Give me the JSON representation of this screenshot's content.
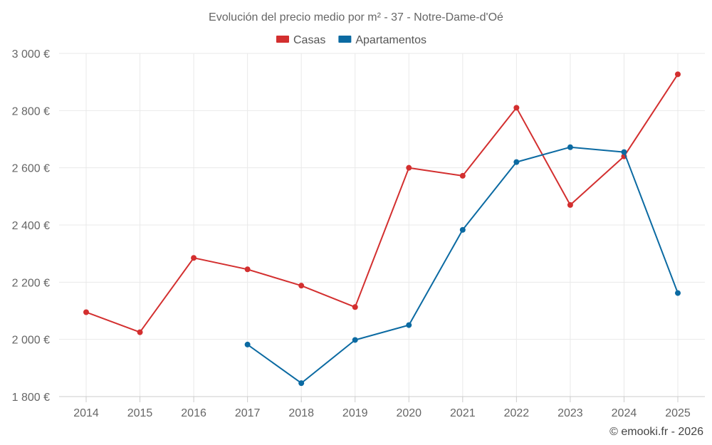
{
  "chart_data": {
    "type": "line",
    "title": "Evolución del precio medio por m² - 37 - Notre-Dame-d'Oé",
    "categories": [
      "2014",
      "2015",
      "2016",
      "2017",
      "2018",
      "2019",
      "2020",
      "2021",
      "2022",
      "2023",
      "2024",
      "2025"
    ],
    "ylim": [
      1800,
      3000
    ],
    "yticks": [
      1800,
      2000,
      2200,
      2400,
      2600,
      2800,
      3000
    ],
    "ytick_labels": [
      "1 800 €",
      "2 000 €",
      "2 200 €",
      "2 400 €",
      "2 600 €",
      "2 800 €",
      "3 000 €"
    ],
    "xlabel": "",
    "ylabel": "",
    "legend_position": "top-center",
    "grid": true,
    "series": [
      {
        "name": "Casas",
        "color": "#d32f2f",
        "values": [
          2095,
          2025,
          2285,
          2245,
          2188,
          2113,
          2600,
          2572,
          2810,
          2470,
          2640,
          2927
        ]
      },
      {
        "name": "Apartamentos",
        "color": "#0b6aa2",
        "values": [
          null,
          null,
          null,
          1982,
          1847,
          1998,
          2050,
          2383,
          2620,
          2672,
          2655,
          2162
        ]
      }
    ]
  },
  "credit": "© emooki.fr - 2026"
}
